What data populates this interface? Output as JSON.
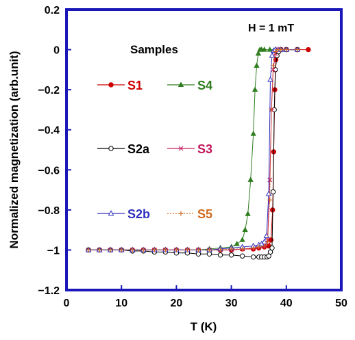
{
  "chart_data": {
    "type": "line",
    "title": "",
    "xlabel": "T (K)",
    "ylabel": "Normalized magnetization (arb.unit)",
    "xlim": [
      0,
      50
    ],
    "ylim": [
      -1.2,
      0.2
    ],
    "xticks": [
      "0",
      "10",
      "20",
      "30",
      "40",
      "50"
    ],
    "yticks": [
      "0.2",
      "0",
      "−0.2",
      "−0.4",
      "−0.6",
      "−0.8",
      "−1",
      "−1.2"
    ],
    "grid": false,
    "annotation": "H = 1 mT",
    "legend_title": "Samples",
    "series": [
      {
        "name": "S1",
        "color": "#cc0000",
        "marker": "filled-circle",
        "x": [
          4,
          6,
          8,
          10,
          12,
          14,
          16,
          18,
          20,
          22,
          24,
          26,
          28,
          30,
          32,
          34,
          35,
          36,
          36.8,
          37.2,
          37.5,
          37.7,
          37.9,
          38.1,
          38.4,
          39,
          40,
          42,
          44
        ],
        "y": [
          -1.0,
          -1.0,
          -1.0,
          -1.0,
          -1.0,
          -1.0,
          -1.0,
          -1.0,
          -1.0,
          -1.0,
          -1.0,
          -1.0,
          -1.0,
          -1.0,
          -0.995,
          -0.995,
          -0.99,
          -0.985,
          -0.98,
          -0.95,
          -0.8,
          -0.51,
          -0.2,
          -0.05,
          -0.01,
          0,
          0,
          0,
          0
        ]
      },
      {
        "name": "S4",
        "color": "#2e7d1e",
        "marker": "filled-triangle",
        "x": [
          4,
          6,
          8,
          10,
          12,
          14,
          16,
          18,
          20,
          22,
          24,
          26,
          28,
          30,
          31,
          32,
          32.5,
          33,
          33.5,
          34,
          34.3,
          34.6,
          34.9,
          35.2,
          35.5,
          36,
          37,
          38,
          40
        ],
        "y": [
          -1.0,
          -1.0,
          -1.0,
          -1.0,
          -1.0,
          -1.0,
          -1.0,
          -1.0,
          -1.0,
          -1.0,
          -1.0,
          -0.995,
          -0.99,
          -0.985,
          -0.97,
          -0.95,
          -0.9,
          -0.82,
          -0.65,
          -0.42,
          -0.2,
          -0.08,
          -0.02,
          0,
          0,
          0,
          0,
          0,
          0
        ]
      },
      {
        "name": "S2a",
        "color": "#000000",
        "marker": "open-circle",
        "x": [
          4,
          6,
          8,
          10,
          12,
          14,
          16,
          18,
          20,
          22,
          24,
          26,
          28,
          30,
          32,
          34,
          35,
          35.5,
          36,
          36.5,
          36.8,
          37.1,
          37.4,
          37.6,
          37.8,
          38,
          38.3,
          38.6,
          39,
          40,
          42
        ],
        "y": [
          -1.0,
          -1.0,
          -1.0,
          -1.0,
          -1.005,
          -1.005,
          -1.01,
          -1.01,
          -1.015,
          -1.015,
          -1.02,
          -1.02,
          -1.025,
          -1.025,
          -1.03,
          -1.035,
          -1.035,
          -1.035,
          -1.035,
          -1.035,
          -1.03,
          -1.01,
          -0.99,
          -0.71,
          -0.3,
          -0.1,
          -0.03,
          -0.01,
          0,
          0,
          0
        ]
      },
      {
        "name": "S3",
        "color": "#c2185b",
        "marker": "x",
        "x": [
          4,
          6,
          8,
          10,
          12,
          14,
          16,
          18,
          20,
          22,
          24,
          26,
          28,
          30,
          32,
          34,
          35,
          36,
          36.6,
          37,
          37.3,
          37.6,
          38,
          38.5,
          39,
          40,
          42
        ],
        "y": [
          -1.0,
          -1.0,
          -1.0,
          -1.0,
          -1.0,
          -1.0,
          -1.0,
          -1.0,
          -1.0,
          -1.0,
          -1.0,
          -1.0,
          -1.0,
          -1.0,
          -0.995,
          -0.99,
          -0.985,
          -0.98,
          -0.95,
          -0.65,
          -0.3,
          -0.1,
          -0.02,
          0,
          0,
          0,
          0
        ]
      },
      {
        "name": "S2b",
        "color": "#2f2fbf",
        "marker": "open-triangle",
        "x": [
          4,
          6,
          8,
          10,
          12,
          14,
          16,
          18,
          20,
          22,
          24,
          26,
          28,
          30,
          32,
          34,
          35,
          35.5,
          36,
          36.4,
          36.8,
          37.1,
          37.4,
          37.7,
          38,
          38.5,
          39,
          40,
          42
        ],
        "y": [
          -1.0,
          -1.0,
          -1.0,
          -1.0,
          -1.0,
          -1.0,
          -1.0,
          -1.0,
          -1.0,
          -1.0,
          -1.0,
          -1.0,
          -0.995,
          -0.99,
          -0.985,
          -0.98,
          -0.975,
          -0.97,
          -0.96,
          -0.93,
          -0.72,
          -0.15,
          -0.03,
          -0.005,
          0,
          0,
          0,
          0,
          0
        ]
      },
      {
        "name": "S5",
        "color": "#d2691e",
        "marker": "plus",
        "x": [
          4,
          6,
          8,
          10,
          12,
          14,
          16,
          18,
          20,
          22,
          24,
          26,
          28,
          30,
          32,
          34,
          35,
          36,
          36.6,
          37,
          37.3,
          37.6,
          38,
          38.5,
          39,
          40,
          42
        ],
        "y": [
          -1.0,
          -1.0,
          -1.0,
          -1.0,
          -1.0,
          -1.0,
          -1.0,
          -1.0,
          -1.0,
          -1.0,
          -1.0,
          -1.0,
          -1.0,
          -0.995,
          -0.995,
          -0.99,
          -0.985,
          -0.98,
          -0.96,
          -0.75,
          -0.3,
          -0.08,
          -0.01,
          0,
          0,
          0,
          0
        ]
      }
    ]
  }
}
